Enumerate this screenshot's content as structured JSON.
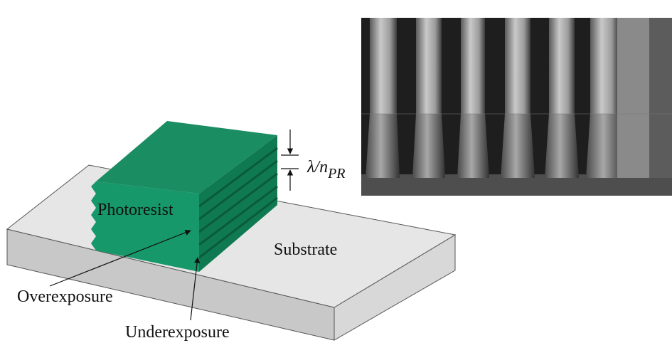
{
  "labels": {
    "photoresist": "Photoresist",
    "substrate": "Substrate",
    "overexposure": "Overexposure",
    "underexposure": "Underexposure",
    "period": {
      "symbol": "λ/n",
      "subscript": "PR"
    }
  }
}
